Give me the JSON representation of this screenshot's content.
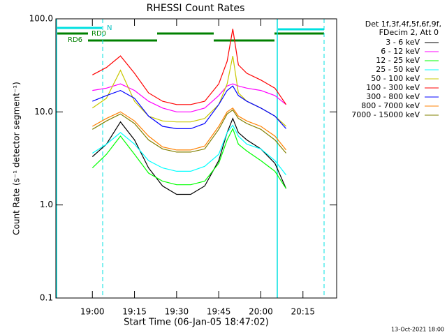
{
  "chart_data": {
    "type": "line",
    "title": "RHESSI Count Rates",
    "x_label": "Start Time (06-Jan-05 18:47:02)",
    "y_label": "Count Rate (s⁻¹ detector segment⁻¹)",
    "legend_title": [
      "Det 1f,3f,4f,5f,6f,9f,",
      "FDecim 2, Att 0"
    ],
    "footer": "13-Oct-2021 18:00",
    "annotations": [
      "N",
      "RD0",
      "RD6"
    ],
    "log_y": true,
    "legend": "right",
    "xlim": [
      "18:47",
      "20:27"
    ],
    "xticks": [
      "19:00",
      "19:15",
      "19:30",
      "19:45",
      "20:00",
      "20:15"
    ],
    "ylim": [
      0.1,
      100
    ],
    "yticks": [
      {
        "value": 0.1,
        "label": "0.1"
      },
      {
        "value": 1,
        "label": "1.0"
      },
      {
        "value": 10,
        "label": "10.0"
      },
      {
        "value": 100,
        "label": "100.0"
      }
    ],
    "x": [
      "19:00",
      "19:05",
      "19:10",
      "19:15",
      "19:20",
      "19:25",
      "19:30",
      "19:35",
      "19:40",
      "19:45",
      "19:48",
      "19:50",
      "19:52",
      "19:55",
      "20:00",
      "20:05",
      "20:09"
    ],
    "series": [
      {
        "name": "3 - 6 keV",
        "color": "#000000",
        "values": [
          3.3,
          4.5,
          7.8,
          5,
          2.5,
          1.6,
          1.3,
          1.3,
          1.6,
          3,
          6,
          8.5,
          6,
          5,
          4,
          2.8,
          1.5
        ]
      },
      {
        "name": "6 - 12 keV",
        "color": "#ff00ff",
        "values": [
          17,
          18,
          20,
          17,
          13,
          11,
          10,
          10,
          11,
          15,
          19,
          20,
          19,
          18,
          17,
          15,
          12
        ]
      },
      {
        "name": "12 - 25 keV",
        "color": "#00ff00",
        "values": [
          2.5,
          3.5,
          5.5,
          3.5,
          2.2,
          1.8,
          1.65,
          1.65,
          1.8,
          2.8,
          5,
          6.6,
          4.5,
          3.8,
          3,
          2.3,
          1.5
        ]
      },
      {
        "name": "25 - 50 keV",
        "color": "#00ffff",
        "values": [
          3.6,
          4.5,
          6,
          4.5,
          3,
          2.5,
          2.3,
          2.3,
          2.6,
          3.5,
          6,
          7.2,
          5.5,
          4.5,
          4,
          3,
          2.1
        ]
      },
      {
        "name": "50 - 100 keV",
        "color": "#c8c800",
        "values": [
          11,
          14,
          28,
          13,
          9,
          8,
          7.8,
          7.8,
          8.5,
          12,
          20,
          40,
          16,
          13,
          11,
          9,
          7
        ]
      },
      {
        "name": "100 - 300 keV",
        "color": "#ff0000",
        "values": [
          25,
          30,
          40,
          26,
          16,
          13,
          12,
          12,
          13,
          20,
          35,
          78,
          32,
          26,
          22,
          18,
          12
        ]
      },
      {
        "name": "300 - 800 keV",
        "color": "#0000ff",
        "values": [
          13,
          15,
          17,
          14,
          9,
          7,
          6.6,
          6.6,
          7.5,
          12,
          17,
          19,
          15,
          13,
          11,
          9,
          6.6
        ]
      },
      {
        "name": "800 - 7000 keV",
        "color": "#ff8000",
        "values": [
          7,
          8.5,
          10,
          8,
          5.5,
          4.2,
          3.9,
          3.9,
          4.3,
          7,
          10,
          11,
          9,
          8,
          7,
          5.5,
          3.9
        ]
      },
      {
        "name": "7000 - 15000 keV",
        "color": "#808000",
        "values": [
          6.5,
          8,
          9.5,
          7.5,
          5,
          4,
          3.7,
          3.7,
          4,
          6.5,
          9.5,
          10.5,
          8.5,
          7.5,
          6.5,
          5,
          3.6
        ]
      }
    ]
  }
}
